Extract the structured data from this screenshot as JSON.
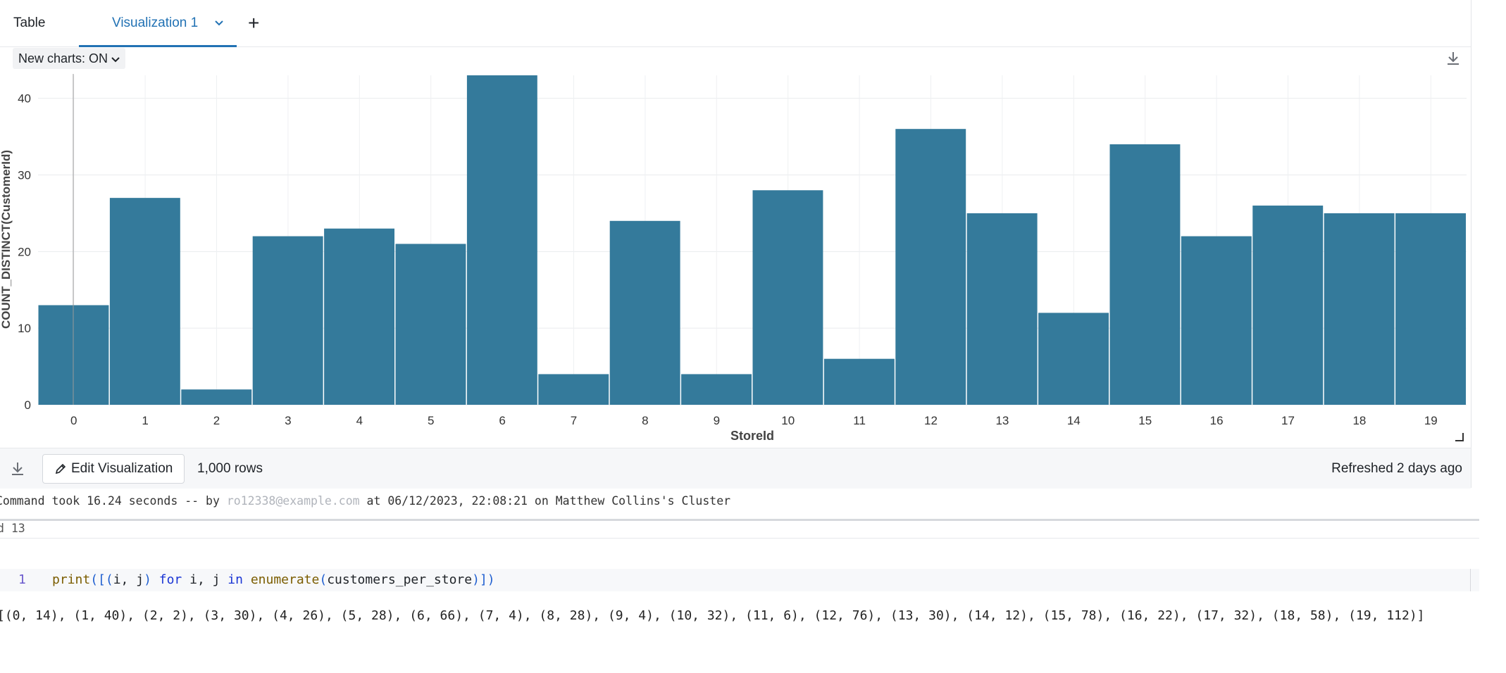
{
  "tabs": {
    "table_label": "Table",
    "viz_label": "Visualization 1",
    "add_label": "+"
  },
  "toolbar": {
    "new_charts_label": "New charts: ON"
  },
  "icons": {
    "download": "download-icon",
    "pencil": "pencil-icon",
    "chevron": "chevron-down-icon",
    "resize": "resize-handle-icon"
  },
  "colors": {
    "accent": "#2272b4",
    "bar": "#347a9b"
  },
  "chart_data": {
    "type": "bar",
    "categories": [
      "0",
      "1",
      "2",
      "3",
      "4",
      "5",
      "6",
      "7",
      "8",
      "9",
      "10",
      "11",
      "12",
      "13",
      "14",
      "15",
      "16",
      "17",
      "18",
      "19"
    ],
    "values": [
      13,
      27,
      2,
      22,
      23,
      21,
      43,
      4,
      24,
      4,
      28,
      6,
      36,
      25,
      12,
      34,
      22,
      26,
      25,
      25
    ],
    "title": "",
    "xlabel": "StoreId",
    "ylabel": "COUNT_DISTINCT(CustomerId)",
    "ylim": [
      0,
      43
    ],
    "yticks": [
      0,
      10,
      20,
      30,
      40
    ],
    "grid": true,
    "legend": "none"
  },
  "footer": {
    "edit_label": "Edit Visualization",
    "rows_label": "1,000 rows",
    "refreshed_label": "Refreshed 2 days ago"
  },
  "command": {
    "prefix": "Command took 16.24 seconds -- by ",
    "masked_user": "ro12338@example.com",
    "suffix": " at 06/12/2023, 22:08:21 on Matthew Collins's Cluster"
  },
  "cell": {
    "label": "d 13",
    "line_number": "1",
    "code_tokens": {
      "t1": "print",
      "t2": "([(",
      "t3": "i, j",
      "t4": ")",
      "t5": " for",
      "t6": " i, j ",
      "t7": "in",
      "t8": " enumerate",
      "t9": "(",
      "t10": "customers_per_store",
      "t11": ")])"
    },
    "output": "[(0, 14), (1, 40), (2, 2), (3, 30), (4, 26), (5, 28), (6, 66), (7, 4), (8, 28), (9, 4), (10, 32), (11, 6), (12, 76), (13, 30), (14, 12), (15, 78), (16, 22), (17, 32), (18, 58), (19, 112)]"
  }
}
